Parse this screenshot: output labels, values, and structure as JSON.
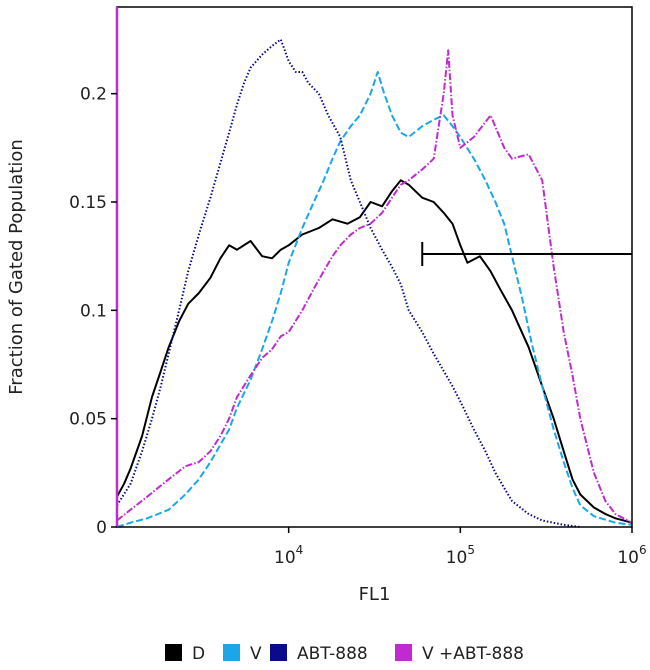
{
  "chart_data": {
    "type": "line",
    "title": "",
    "xlabel": "FL1",
    "ylabel": "Fraction of Gated Population",
    "x_scale": "log",
    "xlim": [
      1000,
      1000000
    ],
    "ylim": [
      0,
      0.24
    ],
    "x_ticks": [
      {
        "value": 10000,
        "base": "10",
        "exp": "4"
      },
      {
        "value": 100000,
        "base": "10",
        "exp": "5"
      },
      {
        "value": 1000000,
        "base": "10",
        "exp": "6"
      }
    ],
    "y_ticks": [
      {
        "value": 0,
        "label": "0"
      },
      {
        "value": 0.05,
        "label": "0.05"
      },
      {
        "value": 0.1,
        "label": "0.1"
      },
      {
        "value": 0.15,
        "label": "0.15"
      },
      {
        "value": 0.2,
        "label": "0.2"
      }
    ],
    "legend_position": "bottom",
    "gate": {
      "x_start": 60000,
      "x_end": 1000000,
      "y": 0.126
    },
    "series": [
      {
        "name": "D",
        "color": "#000000",
        "style": "solid",
        "points": [
          [
            1000,
            0.014
          ],
          [
            1100,
            0.02
          ],
          [
            1200,
            0.027
          ],
          [
            1400,
            0.042
          ],
          [
            1600,
            0.06
          ],
          [
            1800,
            0.072
          ],
          [
            2000,
            0.083
          ],
          [
            2300,
            0.095
          ],
          [
            2600,
            0.103
          ],
          [
            3000,
            0.108
          ],
          [
            3500,
            0.115
          ],
          [
            4000,
            0.124
          ],
          [
            4500,
            0.13
          ],
          [
            5000,
            0.128
          ],
          [
            6000,
            0.132
          ],
          [
            7000,
            0.125
          ],
          [
            8000,
            0.124
          ],
          [
            9000,
            0.128
          ],
          [
            10000,
            0.13
          ],
          [
            12000,
            0.135
          ],
          [
            15000,
            0.138
          ],
          [
            18000,
            0.142
          ],
          [
            22000,
            0.14
          ],
          [
            26000,
            0.143
          ],
          [
            30000,
            0.15
          ],
          [
            35000,
            0.148
          ],
          [
            40000,
            0.155
          ],
          [
            45000,
            0.16
          ],
          [
            50000,
            0.158
          ],
          [
            60000,
            0.152
          ],
          [
            70000,
            0.15
          ],
          [
            80000,
            0.145
          ],
          [
            90000,
            0.14
          ],
          [
            100000,
            0.13
          ],
          [
            110000,
            0.122
          ],
          [
            130000,
            0.125
          ],
          [
            150000,
            0.118
          ],
          [
            170000,
            0.11
          ],
          [
            200000,
            0.1
          ],
          [
            250000,
            0.083
          ],
          [
            300000,
            0.065
          ],
          [
            350000,
            0.05
          ],
          [
            400000,
            0.035
          ],
          [
            450000,
            0.022
          ],
          [
            500000,
            0.015
          ],
          [
            600000,
            0.009
          ],
          [
            700000,
            0.006
          ],
          [
            800000,
            0.004
          ],
          [
            1000000,
            0.002
          ]
        ]
      },
      {
        "name": "V",
        "color": "#1aa7e8",
        "style": "dashed",
        "points": [
          [
            1000,
            0.0
          ],
          [
            1200,
            0.002
          ],
          [
            1500,
            0.004
          ],
          [
            2000,
            0.008
          ],
          [
            2500,
            0.015
          ],
          [
            3000,
            0.022
          ],
          [
            3500,
            0.03
          ],
          [
            4000,
            0.038
          ],
          [
            4500,
            0.045
          ],
          [
            5000,
            0.055
          ],
          [
            6000,
            0.068
          ],
          [
            7000,
            0.082
          ],
          [
            8000,
            0.095
          ],
          [
            9000,
            0.108
          ],
          [
            10000,
            0.122
          ],
          [
            12000,
            0.138
          ],
          [
            14000,
            0.15
          ],
          [
            16000,
            0.16
          ],
          [
            18000,
            0.17
          ],
          [
            20000,
            0.178
          ],
          [
            23000,
            0.185
          ],
          [
            26000,
            0.19
          ],
          [
            30000,
            0.2
          ],
          [
            33000,
            0.21
          ],
          [
            36000,
            0.2
          ],
          [
            40000,
            0.19
          ],
          [
            45000,
            0.182
          ],
          [
            50000,
            0.18
          ],
          [
            60000,
            0.185
          ],
          [
            70000,
            0.188
          ],
          [
            80000,
            0.19
          ],
          [
            90000,
            0.185
          ],
          [
            100000,
            0.18
          ],
          [
            120000,
            0.17
          ],
          [
            140000,
            0.16
          ],
          [
            160000,
            0.15
          ],
          [
            180000,
            0.14
          ],
          [
            200000,
            0.125
          ],
          [
            230000,
            0.105
          ],
          [
            260000,
            0.085
          ],
          [
            300000,
            0.065
          ],
          [
            350000,
            0.045
          ],
          [
            400000,
            0.03
          ],
          [
            450000,
            0.018
          ],
          [
            500000,
            0.01
          ],
          [
            600000,
            0.005
          ],
          [
            800000,
            0.002
          ],
          [
            1000000,
            0.001
          ]
        ]
      },
      {
        "name": "ABT-888",
        "color": "#0a0a8a",
        "style": "dotted",
        "points": [
          [
            1000,
            0.01
          ],
          [
            1200,
            0.02
          ],
          [
            1400,
            0.035
          ],
          [
            1600,
            0.05
          ],
          [
            1800,
            0.065
          ],
          [
            2000,
            0.08
          ],
          [
            2300,
            0.1
          ],
          [
            2600,
            0.118
          ],
          [
            3000,
            0.135
          ],
          [
            3500,
            0.152
          ],
          [
            4000,
            0.168
          ],
          [
            4500,
            0.182
          ],
          [
            5000,
            0.195
          ],
          [
            5500,
            0.205
          ],
          [
            6000,
            0.212
          ],
          [
            7000,
            0.218
          ],
          [
            8000,
            0.222
          ],
          [
            9000,
            0.225
          ],
          [
            10000,
            0.215
          ],
          [
            11000,
            0.21
          ],
          [
            12000,
            0.21
          ],
          [
            13000,
            0.205
          ],
          [
            15000,
            0.2
          ],
          [
            17000,
            0.19
          ],
          [
            20000,
            0.18
          ],
          [
            23000,
            0.16
          ],
          [
            26000,
            0.15
          ],
          [
            30000,
            0.138
          ],
          [
            35000,
            0.128
          ],
          [
            40000,
            0.12
          ],
          [
            45000,
            0.112
          ],
          [
            50000,
            0.1
          ],
          [
            60000,
            0.09
          ],
          [
            70000,
            0.08
          ],
          [
            80000,
            0.072
          ],
          [
            90000,
            0.065
          ],
          [
            100000,
            0.058
          ],
          [
            120000,
            0.045
          ],
          [
            140000,
            0.035
          ],
          [
            160000,
            0.025
          ],
          [
            180000,
            0.018
          ],
          [
            200000,
            0.012
          ],
          [
            250000,
            0.006
          ],
          [
            300000,
            0.003
          ],
          [
            400000,
            0.001
          ],
          [
            500000,
            0.0
          ]
        ]
      },
      {
        "name": "V +ABT-888",
        "color": "#c02ad0",
        "style": "dashdot",
        "points": [
          [
            1000,
            0.003
          ],
          [
            1200,
            0.008
          ],
          [
            1500,
            0.014
          ],
          [
            2000,
            0.022
          ],
          [
            2500,
            0.028
          ],
          [
            3000,
            0.03
          ],
          [
            3500,
            0.035
          ],
          [
            4000,
            0.042
          ],
          [
            4500,
            0.05
          ],
          [
            5000,
            0.06
          ],
          [
            6000,
            0.07
          ],
          [
            7000,
            0.078
          ],
          [
            8000,
            0.082
          ],
          [
            9000,
            0.088
          ],
          [
            10000,
            0.09
          ],
          [
            12000,
            0.1
          ],
          [
            14000,
            0.11
          ],
          [
            16000,
            0.118
          ],
          [
            18000,
            0.125
          ],
          [
            20000,
            0.13
          ],
          [
            23000,
            0.135
          ],
          [
            26000,
            0.138
          ],
          [
            30000,
            0.14
          ],
          [
            35000,
            0.145
          ],
          [
            40000,
            0.152
          ],
          [
            45000,
            0.158
          ],
          [
            50000,
            0.16
          ],
          [
            60000,
            0.165
          ],
          [
            70000,
            0.17
          ],
          [
            80000,
            0.2
          ],
          [
            85000,
            0.22
          ],
          [
            90000,
            0.19
          ],
          [
            100000,
            0.175
          ],
          [
            120000,
            0.18
          ],
          [
            150000,
            0.19
          ],
          [
            180000,
            0.175
          ],
          [
            200000,
            0.17
          ],
          [
            250000,
            0.172
          ],
          [
            300000,
            0.16
          ],
          [
            350000,
            0.12
          ],
          [
            400000,
            0.09
          ],
          [
            450000,
            0.07
          ],
          [
            500000,
            0.05
          ],
          [
            600000,
            0.025
          ],
          [
            700000,
            0.012
          ],
          [
            800000,
            0.006
          ],
          [
            1000000,
            0.002
          ]
        ]
      }
    ]
  }
}
